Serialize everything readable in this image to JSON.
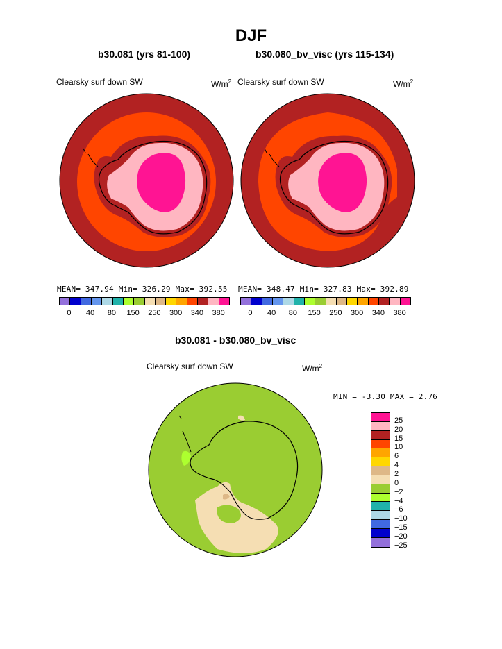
{
  "title": "DJF",
  "panels": [
    {
      "case": "b30.081 (yrs 81-100)",
      "variable": "Clearsky surf down SW",
      "units": "W/m",
      "units_sup": "2",
      "stats": "MEAN= 347.94  Min= 326.29  Max= 392.55"
    },
    {
      "case": "b30.080_bv_visc (yrs 115-134)",
      "variable": "Clearsky surf down SW",
      "units": "W/m",
      "units_sup": "2",
      "stats": "MEAN= 348.47  Min= 327.83  Max= 392.89"
    }
  ],
  "colorbar_top": {
    "colors": [
      "#9370db",
      "#0000cd",
      "#4169e1",
      "#6495ed",
      "#add8e6",
      "#20b2aa",
      "#adff2f",
      "#9acd32",
      "#f5deb3",
      "#deb887",
      "#ffd700",
      "#ffa500",
      "#ff4500",
      "#b22222",
      "#ffb6c1",
      "#ff1493"
    ],
    "labels": [
      "0",
      "40",
      "80",
      "150",
      "250",
      "300",
      "340",
      "380"
    ]
  },
  "diff_panel": {
    "title": "b30.081 - b30.080_bv_visc",
    "variable": "Clearsky surf down SW",
    "units": "W/m",
    "units_sup": "2",
    "stats": "MIN =  -3.30 MAX =   2.76"
  },
  "colorbar_diff": {
    "colors": [
      "#ff1493",
      "#ffb6c1",
      "#b22222",
      "#ff4500",
      "#ffa500",
      "#ffd700",
      "#deb887",
      "#f5deb3",
      "#9acd32",
      "#adff2f",
      "#20b2aa",
      "#add8e6",
      "#4169e1",
      "#0000cd",
      "#9370db"
    ],
    "labels": [
      "25",
      "20",
      "15",
      "10",
      "6",
      "4",
      "2",
      "0",
      "−2",
      "−4",
      "−6",
      "−10",
      "−15",
      "−20",
      "−25"
    ]
  },
  "map_colors": {
    "outer": "#b22222",
    "mid": "#ff4500",
    "ice_edge": "#b22222",
    "ice": "#ffb6c1",
    "core": "#ff1493",
    "diff_bg": "#9acd32",
    "diff_pos": "#f5deb3",
    "diff_neg": "#adff2f"
  }
}
